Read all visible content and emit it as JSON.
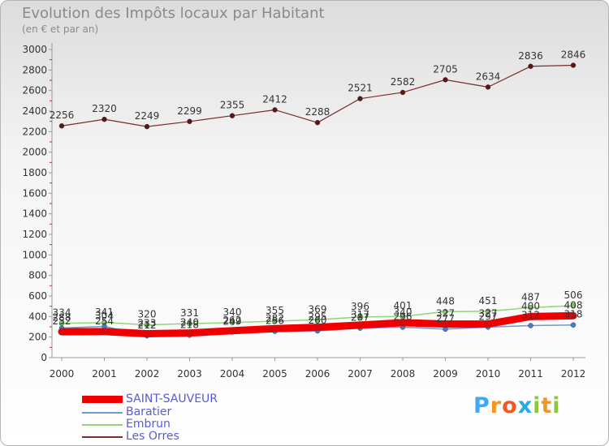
{
  "header": {
    "title": "Evolution des Impôts locaux par Habitant",
    "subtitle": "(en € et par an)"
  },
  "chart_data": {
    "type": "line",
    "title": "Evolution des Impôts locaux par Habitant",
    "subtitle": "(en € et par an)",
    "xlabel": "",
    "ylabel": "",
    "ylim": [
      0,
      3000
    ],
    "yticks": [
      "0",
      "200",
      "400",
      "600",
      "800",
      "1000",
      "1200",
      "1400",
      "1600",
      "1800",
      "2000",
      "2200",
      "2400",
      "2600",
      "2800",
      "3000"
    ],
    "categories": [
      "2000",
      "2001",
      "2002",
      "2003",
      "2004",
      "2005",
      "2006",
      "2007",
      "2008",
      "2009",
      "2010",
      "2011",
      "2012"
    ],
    "series": [
      {
        "name": "SAINT-SAUVEUR",
        "color": "#ee0000",
        "marker": "#ee0000",
        "values": [
          252,
          254,
          233,
          240,
          262,
          282,
          295,
          317,
          340,
          327,
          327,
          400,
          408
        ]
      },
      {
        "name": "Baratier",
        "color": "#6b9bd2",
        "marker": "#3f7fc8",
        "values": [
          288,
          304,
          212,
          218,
          249,
          256,
          260,
          287,
          296,
          277,
          297,
          312,
          318
        ]
      },
      {
        "name": "Embrun",
        "color": "#8ed67a",
        "marker": "#7ccd5e",
        "values": [
          334,
          341,
          320,
          331,
          340,
          355,
          369,
          396,
          401,
          448,
          451,
          487,
          506
        ]
      },
      {
        "name": "Les Orres",
        "color": "#7b2c2c",
        "marker": "#5a1515",
        "values": [
          2256,
          2320,
          2249,
          2299,
          2355,
          2412,
          2288,
          2521,
          2582,
          2705,
          2634,
          2836,
          2846
        ]
      }
    ],
    "data_labels": [
      {
        "series": "Les Orres",
        "labels": [
          "2256",
          "2320",
          "2249",
          "2299",
          "2355",
          "2412",
          "2288",
          "2521",
          "2582",
          "2705",
          "2634",
          "2836",
          "2846"
        ]
      },
      {
        "series": "Embrun",
        "labels": [
          "334",
          "341",
          "320",
          "331",
          "340",
          "355",
          "369",
          "396",
          "401",
          "448",
          "451",
          "487",
          "506"
        ]
      },
      {
        "series": "Baratier",
        "labels": [
          "288",
          "304",
          "212",
          "218",
          "249",
          "256",
          "260",
          "287",
          "296",
          "277",
          "297",
          "312",
          "318"
        ]
      },
      {
        "series": "SAINT-SAUVEUR",
        "labels": [
          "252",
          "254",
          "233",
          "240",
          "262",
          "282",
          "295",
          "317",
          "340",
          "327",
          "327",
          "400",
          "408"
        ]
      }
    ],
    "legend_position": "bottom-left",
    "grid": false
  },
  "legend": [
    {
      "label": "SAINT-SAUVEUR",
      "color": "#ee0000",
      "weight": "bold"
    },
    {
      "label": "Baratier",
      "color": "#6b9bd2",
      "weight": "thin"
    },
    {
      "label": "Embrun",
      "color": "#8ed67a",
      "weight": "thin"
    },
    {
      "label": "Les Orres",
      "color": "#7b2c2c",
      "weight": "thin"
    }
  ],
  "logo": {
    "letters": [
      "P",
      "r",
      "o",
      "x",
      "i",
      "t",
      "i"
    ],
    "colors": [
      "#3fa9f5",
      "#f7931e",
      "#f15a24",
      "#29abe2",
      "#8cc63f",
      "#f7931e",
      "#8cc63f"
    ]
  }
}
